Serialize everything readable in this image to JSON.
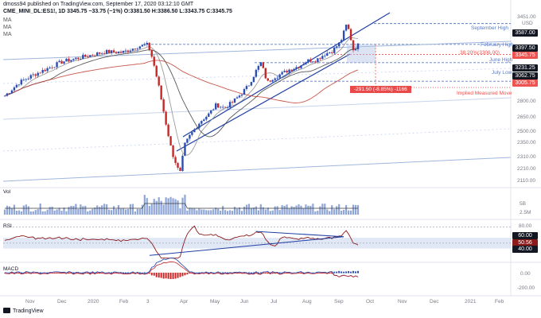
{
  "header": {
    "line1": "dmoss94 published on TradingView.com, September 17, 2020 03:12:10 GMT",
    "line2": "CME_MINI_DL:ES1!, 1D  3345.75  −33.75 (−1%)  O:3381.50  H:3386.50  L:3343.75  C:3345.75",
    "ma_labels": [
      "MA",
      "MA",
      "MA"
    ]
  },
  "price_axis": {
    "currency": "USD",
    "ticks": [
      "3451.00",
      "2800.00",
      "2650.00",
      "2500.00",
      "2350.00",
      "2310.00",
      "2210.00",
      "2110.00"
    ]
  },
  "price_tags": [
    {
      "value": "3587.00",
      "color": "#131722"
    },
    {
      "value": "3397.50",
      "color": "#131722"
    },
    {
      "value": "3345.75",
      "color": "#ef5350"
    },
    {
      "value": "3231.25",
      "color": "#131722"
    },
    {
      "value": "3062.75",
      "color": "#131722"
    },
    {
      "value": "3005.75",
      "color": "#ef5350"
    }
  ],
  "annotations": {
    "september_high": "September High",
    "february_high": "February High",
    "fib": "38.20%(3306.00)",
    "june_high": "June High",
    "july_low": "July Low",
    "implied_move": "Implied Measured Move",
    "measure_box": "-291.50 (-8.85%) -1166"
  },
  "x_axis": {
    "months": [
      "Nov",
      "Dec",
      "2020",
      "Feb",
      "3",
      "Apr",
      "May",
      "Jun",
      "Jul",
      "Aug",
      "Sep",
      "Oct",
      "Nov",
      "Dec",
      "2021",
      "Feb"
    ]
  },
  "vol_panel": {
    "label": "Vol",
    "ticks": [
      "5B",
      "2.5M"
    ]
  },
  "rsi_panel": {
    "label": "RSI",
    "ticks": [
      "80.00",
      "60.00",
      "50.56",
      "40.00"
    ]
  },
  "macd_panel": {
    "label": "MACD",
    "ticks": [
      "0.00",
      "-200.00"
    ]
  },
  "brand": "TradingView",
  "chart_data": {
    "type": "line",
    "title": "CME_MINI_DL:ES1!, 1D",
    "ylabel": "USD",
    "x": [
      "Nov",
      "Dec",
      "2020",
      "Feb",
      "3",
      "Apr",
      "May",
      "Jun",
      "Jul",
      "Aug",
      "Sep"
    ],
    "series": [
      {
        "values": [
          3080,
          3140,
          3230,
          3290,
          2590,
          2620,
          2870,
          3080,
          3150,
          3350,
          3500
        ]
      }
    ],
    "latest_close": 3345.75,
    "ylim": [
      2110,
      3700
    ],
    "levels": {
      "september_high": 3587.0,
      "february_high": 3397.5,
      "fib_38_2": 3306.0,
      "june_high": 3231.25,
      "july_low": 3062.75,
      "implied_move": 3005.75
    },
    "rsi": {
      "last": 50.56,
      "bands": [
        40,
        60,
        80
      ]
    },
    "measured_move": {
      "points": -291.5,
      "percent": -8.85
    }
  }
}
